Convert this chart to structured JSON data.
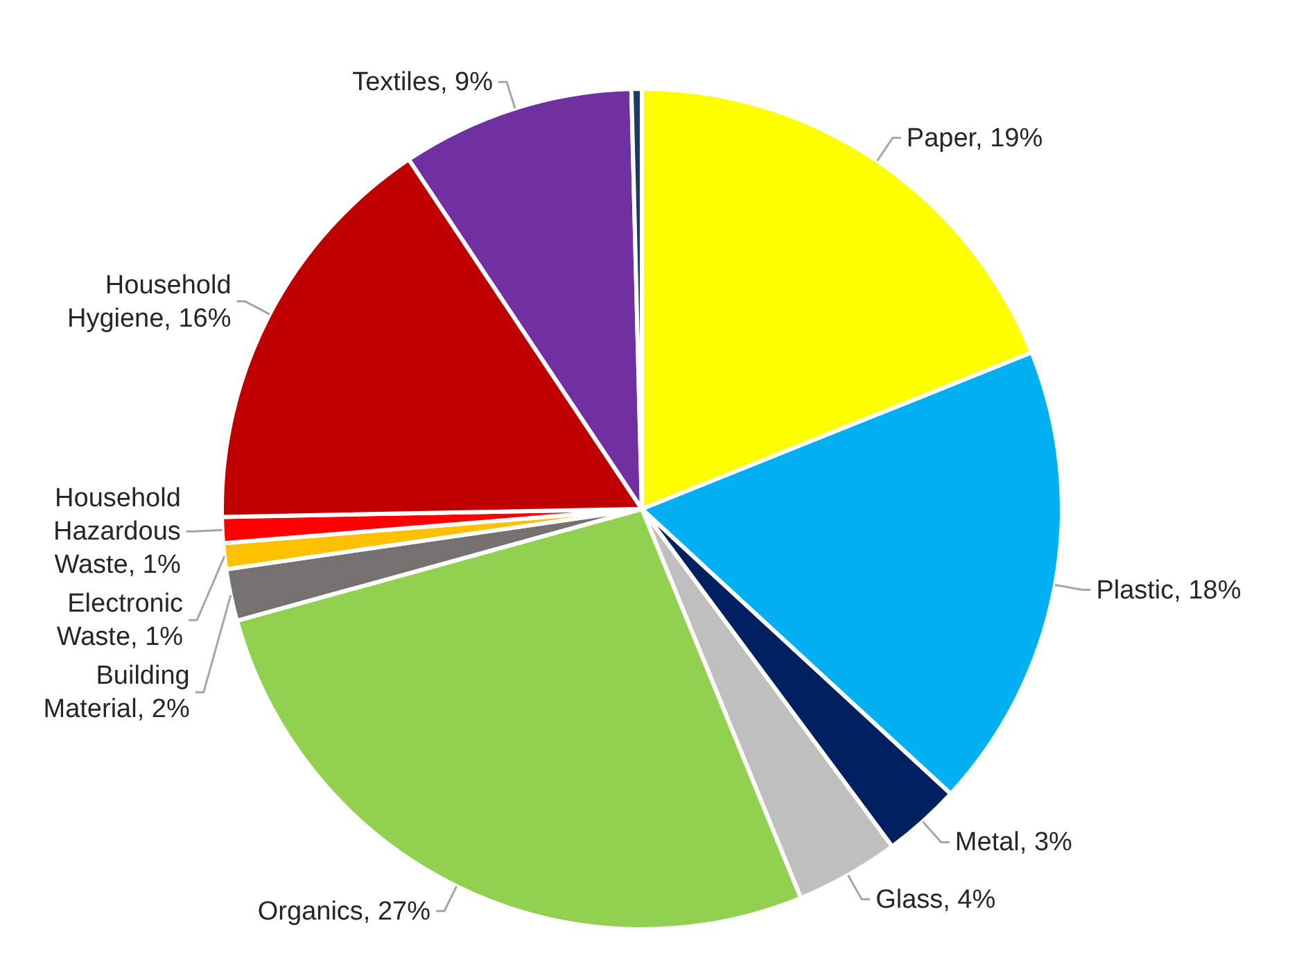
{
  "chart_data": {
    "type": "pie",
    "categories": [
      "Paper",
      "Plastic",
      "Metal",
      "Glass",
      "Organics",
      "Building Material",
      "Electronic Waste",
      "Household Hazardous Waste",
      "Household Hygiene",
      "Textiles",
      null
    ],
    "values": [
      19,
      18,
      3,
      4,
      27,
      2,
      1,
      1,
      16,
      9,
      0.4
    ],
    "colors": [
      "#ffff00",
      "#00b0f0",
      "#002060",
      "#bfbfbf",
      "#92d050",
      "#767171",
      "#ffc000",
      "#ff0000",
      "#c00000",
      "#7030a0",
      "#203864"
    ],
    "value_labels": [
      "19%",
      "18%",
      "3%",
      "4%",
      "27%",
      "2%",
      "1%",
      "1%",
      "16%",
      "9%",
      null
    ],
    "legend": false
  }
}
